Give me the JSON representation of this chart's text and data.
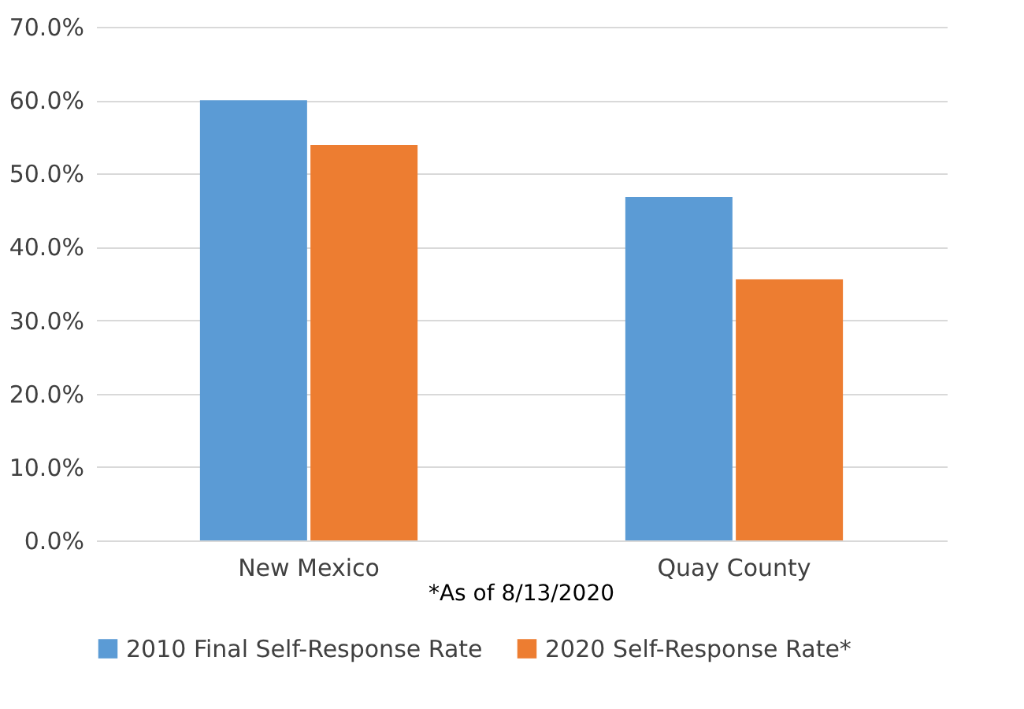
{
  "chart_data": {
    "type": "bar",
    "categories": [
      "New Mexico",
      "Quay County"
    ],
    "series": [
      {
        "name": "2010 Final Self-Response Rate",
        "color": "#5b9bd5",
        "values": [
          60.0,
          46.8
        ]
      },
      {
        "name": "2020 Self-Response Rate*",
        "color": "#ed7d31",
        "values": [
          53.9,
          35.6
        ]
      }
    ],
    "ylim": [
      0,
      70
    ],
    "yticks": [
      {
        "value": 0,
        "label": "0.0%"
      },
      {
        "value": 10,
        "label": "10.0%"
      },
      {
        "value": 20,
        "label": "20.0%"
      },
      {
        "value": 30,
        "label": "30.0%"
      },
      {
        "value": 40,
        "label": "40.0%"
      },
      {
        "value": 50,
        "label": "50.0%"
      },
      {
        "value": 60,
        "label": "60.0%"
      },
      {
        "value": 70,
        "label": "70.0%"
      }
    ],
    "grid": "y",
    "legend": "bottom",
    "annotations": [
      "*As of 8/13/2020"
    ]
  }
}
